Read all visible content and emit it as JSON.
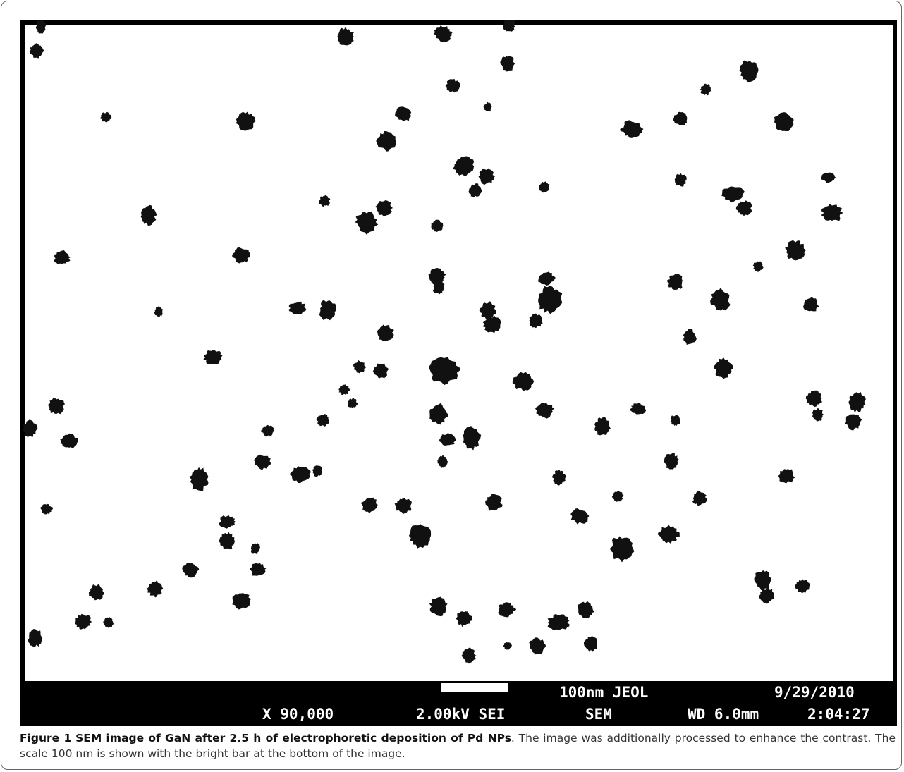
{
  "figure": {
    "info_bar": {
      "scale_label": "100nm JEOL",
      "date": "9/29/2010",
      "magnification": "X 90,000",
      "voltage": "2.00kV SEI",
      "mode": "SEM",
      "working_distance": "WD 6.0mm",
      "time": "2:04:27"
    }
  },
  "caption": {
    "label": "Figure 1",
    "title": "SEM image of GaN after 2.5 h of electrophoretic deposition of Pd NPs",
    "text": ". The image was additionally processed to enhance the contrast. The scale 100 nm is shown with the bright bar at the bottom of the image."
  }
}
